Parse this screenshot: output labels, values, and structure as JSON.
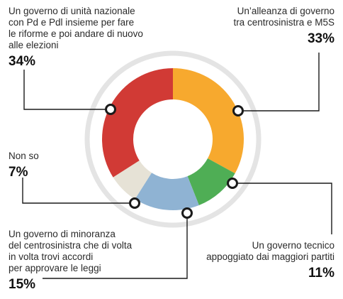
{
  "chart_data": {
    "type": "pie",
    "variant": "donut",
    "title": "",
    "slices": [
      {
        "label": "Un’alleanza di governo\ntra centrosinistra e M5S",
        "value": 33,
        "value_label": "33%",
        "color": "#f7a92e"
      },
      {
        "label": "Un governo tecnico\nappoggiato dai maggiori partiti",
        "value": 11,
        "value_label": "11%",
        "color": "#4fae55"
      },
      {
        "label": "Un governo di minoranza\ndel centrosinistra che di volta\nin volta trovi accordi\nper approvare le leggi",
        "value": 15,
        "value_label": "15%",
        "color": "#8fb3d3"
      },
      {
        "label": "Non so",
        "value": 7,
        "value_label": "7%",
        "color": "#e6e2d6"
      },
      {
        "label": "Un governo di unità nazionale\ncon Pd e Pdl insieme per fare\nle riforme e poi andare di nuovo\nalle elezioni",
        "value": 34,
        "value_label": "34%",
        "color": "#d13a35"
      }
    ],
    "colors": {
      "outer_ring": "#e4e4e4",
      "leader_line": "#1a1a1a"
    }
  }
}
